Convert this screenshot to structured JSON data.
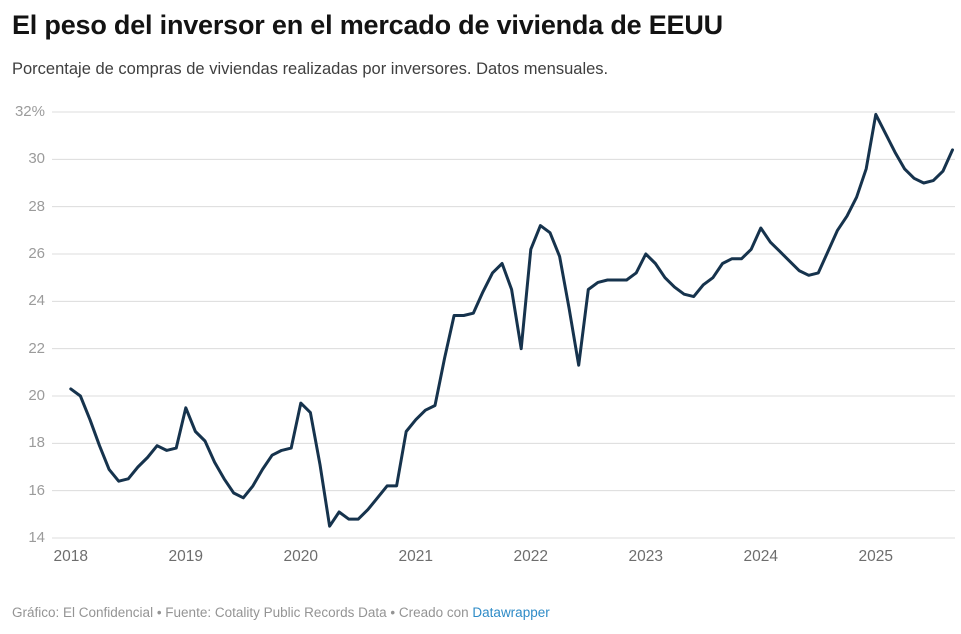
{
  "header": {
    "title": "El peso del inversor en el mercado de vivienda de EEUU",
    "subtitle": "Porcentaje de compras de viviendas realizadas por inversores. Datos mensuales."
  },
  "footer": {
    "credit_text": "Gráfico: El Confidencial • Fuente: Cotality Public Records Data • Creado con ",
    "link_label": "Datawrapper"
  },
  "chart_data": {
    "type": "line",
    "title": "El peso del inversor en el mercado de vivienda de EEUU",
    "subtitle": "Porcentaje de compras de viviendas realizadas por inversores. Datos mensuales.",
    "frequency": "monthly",
    "x_start": "2018-01",
    "x_end": "2025-09",
    "x_tick_labels": [
      "2018",
      "2019",
      "2020",
      "2021",
      "2022",
      "2023",
      "2024",
      "2025"
    ],
    "y_axis": {
      "unit": "%",
      "ylim": [
        14,
        32
      ],
      "ticks": [
        {
          "value": 32,
          "label": "32%"
        },
        {
          "value": 30,
          "label": "30"
        },
        {
          "value": 28,
          "label": "28"
        },
        {
          "value": 26,
          "label": "26"
        },
        {
          "value": 24,
          "label": "24"
        },
        {
          "value": 22,
          "label": "22"
        },
        {
          "value": 20,
          "label": "20"
        },
        {
          "value": 18,
          "label": "18"
        },
        {
          "value": 16,
          "label": "16"
        },
        {
          "value": 14,
          "label": "14"
        }
      ]
    },
    "grid": true,
    "legend": "none",
    "line_color": "#16334d",
    "grid_color": "#dcdcdc",
    "values": [
      20.3,
      20.0,
      19.0,
      17.9,
      16.9,
      16.4,
      16.5,
      17.0,
      17.4,
      17.9,
      17.7,
      17.8,
      19.5,
      18.5,
      18.1,
      17.2,
      16.5,
      15.9,
      15.7,
      16.2,
      16.9,
      17.5,
      17.7,
      17.8,
      19.7,
      19.3,
      17.1,
      14.5,
      15.1,
      14.8,
      14.8,
      15.2,
      15.7,
      16.2,
      16.2,
      18.5,
      19.0,
      19.4,
      19.6,
      21.6,
      23.4,
      23.4,
      23.5,
      24.4,
      25.2,
      25.6,
      24.5,
      22.0,
      26.2,
      27.2,
      26.9,
      25.9,
      23.7,
      21.3,
      24.5,
      24.8,
      24.9,
      24.9,
      24.9,
      25.2,
      26.0,
      25.6,
      25.0,
      24.6,
      24.3,
      24.2,
      24.7,
      25.0,
      25.6,
      25.8,
      25.8,
      26.2,
      27.1,
      26.5,
      26.1,
      25.7,
      25.3,
      25.1,
      25.2,
      26.1,
      27.0,
      27.6,
      28.4,
      29.6,
      31.9,
      31.1,
      30.3,
      29.6,
      29.2,
      29.0,
      29.1,
      29.5,
      30.4
    ]
  }
}
